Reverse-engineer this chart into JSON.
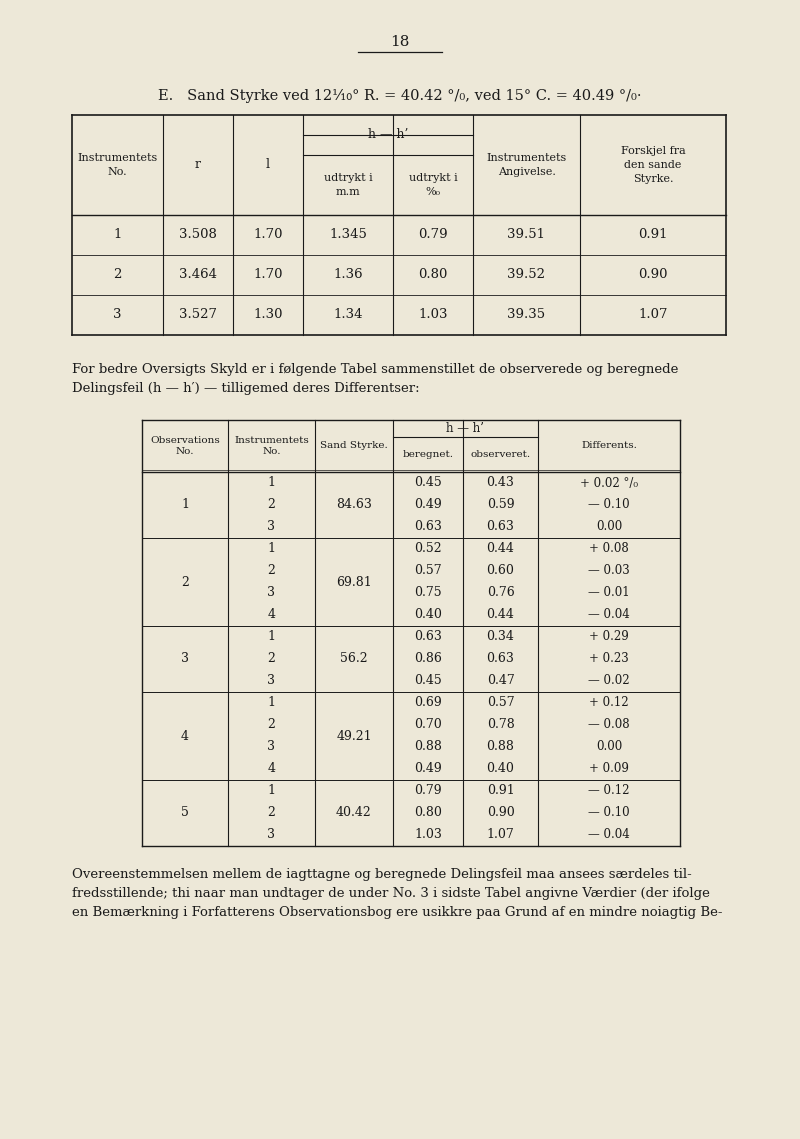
{
  "bg_color": "#ede8d8",
  "text_color": "#1a1a1a",
  "page_number": "18",
  "title_line": "E.   Sand Styrke ved 12⅒° R. = 40.42 °/₀, ved 15° C. = 40.49 °/₀·",
  "table1_rows": [
    [
      "1",
      "3.508",
      "1.70",
      "1.345",
      "0.79",
      "39.51",
      "0.91"
    ],
    [
      "2",
      "3.464",
      "1.70",
      "1.36",
      "0.80",
      "39.52",
      "0.90"
    ],
    [
      "3",
      "3.527",
      "1.30",
      "1.34",
      "1.03",
      "39.35",
      "1.07"
    ]
  ],
  "para1_lines": [
    "For bedre Oversigts Skyld er i følgende Tabel sammenstillet de observerede og beregnede",
    "Delingsfeil (h — h′) — tilligemed deres Differentser:"
  ],
  "table2_data": [
    [
      1,
      1,
      "84.63",
      "0.45",
      "0.43",
      "+ 0.02 °/₀"
    ],
    [
      1,
      2,
      "84.63",
      "0.49",
      "0.59",
      "— 0.10"
    ],
    [
      1,
      3,
      "84.63",
      "0.63",
      "0.63",
      "0.00"
    ],
    [
      2,
      1,
      "69.81",
      "0.52",
      "0.44",
      "+ 0.08"
    ],
    [
      2,
      2,
      "69.81",
      "0.57",
      "0.60",
      "— 0.03"
    ],
    [
      2,
      3,
      "69.81",
      "0.75",
      "0.76",
      "— 0.01"
    ],
    [
      2,
      4,
      "69.81",
      "0.40",
      "0.44",
      "— 0.04"
    ],
    [
      3,
      1,
      "56.2",
      "0.63",
      "0.34",
      "+ 0.29"
    ],
    [
      3,
      2,
      "56.2",
      "0.86",
      "0.63",
      "+ 0.23"
    ],
    [
      3,
      3,
      "56.2",
      "0.45",
      "0.47",
      "— 0.02"
    ],
    [
      4,
      1,
      "49.21",
      "0.69",
      "0.57",
      "+ 0.12"
    ],
    [
      4,
      2,
      "49.21",
      "0.70",
      "0.78",
      "— 0.08"
    ],
    [
      4,
      3,
      "49.21",
      "0.88",
      "0.88",
      "0.00"
    ],
    [
      4,
      4,
      "49.21",
      "0.49",
      "0.40",
      "+ 0.09"
    ],
    [
      5,
      1,
      "40.42",
      "0.79",
      "0.91",
      "— 0.12"
    ],
    [
      5,
      2,
      "40.42",
      "0.80",
      "0.90",
      "— 0.10"
    ],
    [
      5,
      3,
      "40.42",
      "1.03",
      "1.07",
      "— 0.04"
    ]
  ],
  "para2_lines": [
    "Overeenstemmelsen mellem de iagttagne og beregnede Delingsfeil maa ansees særdeles til-",
    "fredsstillende; thi naar man undtager de under No. 3 i sidste Tabel angivne Værdier (der ifolge",
    "en Bemærkning i Forfatterens Observationsbog ere usikkre paa Grund af en mindre noiagtig Be-"
  ]
}
